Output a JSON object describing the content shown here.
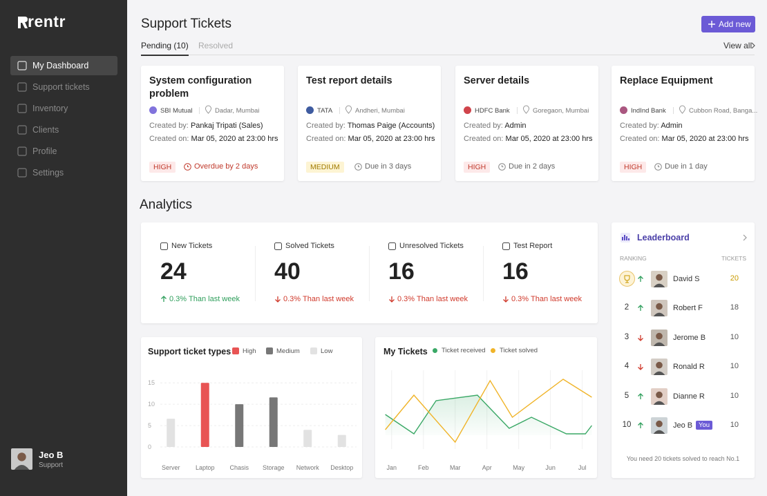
{
  "sidebar": {
    "logo": "rentr",
    "nav": [
      "My Dashboard",
      "Support tickets",
      "Inventory",
      "Clients",
      "Profile",
      "Settings"
    ],
    "active": 0,
    "user": {
      "name": "Jeo B",
      "role": "Support"
    }
  },
  "header": {
    "title": "Support Tickets",
    "button": "Add new",
    "tabs": [
      "Pending (10)",
      "Resolved"
    ],
    "active_tab": 0,
    "view_all": "View all"
  },
  "tickets": [
    {
      "title": "System configuration problem",
      "company": "SBI Mutual",
      "logo_color": "#6b5ad6",
      "location": "Dadar, Mumbai",
      "created_by_label": "Created by:",
      "created_by": "Pankaj Tripati (Sales)",
      "created_on_label": "Created on:",
      "created_on": "Mar 05, 2020 at 23:00 hrs",
      "priority": "HIGH",
      "due": "Overdue by 2 days",
      "overdue": true
    },
    {
      "title": "Test report details",
      "company": "TATA",
      "logo_color": "#1d3f8f",
      "location": "Andheri, Mumbai",
      "created_by_label": "Created by:",
      "created_by": "Thomas Paige (Accounts)",
      "created_on_label": "Created on:",
      "created_on": "Mar 05, 2020 at 23:00 hrs",
      "priority": "MEDIUM",
      "due": "Due in 3 days",
      "overdue": false
    },
    {
      "title": "Server details",
      "company": "HDFC Bank",
      "logo_color": "#c8232c",
      "location": "Goregaon, Mumbai",
      "created_by_label": "Created by:",
      "created_by": "Admin",
      "created_on_label": "Created on:",
      "created_on": "Mar 05, 2020 at 23:00 hrs",
      "priority": "HIGH",
      "due": "Due in 2 days",
      "overdue": false
    },
    {
      "title": "Replace Equipment",
      "company": "IndInd Bank",
      "logo_color": "#9b3a6a",
      "location": "Cubbon Road, Banga...",
      "created_by_label": "Created by:",
      "created_by": "Admin",
      "created_on_label": "Created on:",
      "created_on": "Mar 05, 2020 at 23:00 hrs",
      "priority": "HIGH",
      "due": "Due in 1 day",
      "overdue": false
    }
  ],
  "analytics": {
    "title": "Analytics",
    "stats": [
      {
        "label": "New Tickets",
        "value": 24,
        "change": "0.3%",
        "note": "Than last week",
        "trend": "up"
      },
      {
        "label": "Solved Tickets",
        "value": 40,
        "change": "0.3%",
        "note": "Than last week",
        "trend": "down"
      },
      {
        "label": "Unresolved Tickets",
        "value": 16,
        "change": "0.3%",
        "note": "Than last week",
        "trend": "down"
      },
      {
        "label": "Test Report",
        "value": 16,
        "change": "0.3%",
        "note": "Than last week",
        "trend": "down"
      }
    ],
    "bar_chart": {
      "type": "bar",
      "title": "Support ticket types",
      "categories": [
        "Server",
        "Laptop",
        "Chasis",
        "Storage",
        "Network",
        "Desktop"
      ],
      "series": [
        {
          "name": "High",
          "color": "#e85454",
          "values": [
            null,
            15,
            null,
            null,
            null,
            null
          ]
        },
        {
          "name": "Medium",
          "color": "#777777",
          "values": [
            null,
            null,
            10,
            11.6,
            null,
            null
          ]
        },
        {
          "name": "Low",
          "color": "#e2e2e2",
          "values": [
            6.6,
            null,
            null,
            null,
            4,
            2.8
          ]
        }
      ],
      "ylim": [
        0,
        16
      ],
      "yticks": [
        0,
        5,
        10,
        15
      ],
      "grid": true
    },
    "line_chart": {
      "type": "line",
      "title": "My Tickets",
      "xlim": [
        -0.3,
        6.4
      ],
      "xticks": [
        {
          "value": 0,
          "label": "Jan"
        },
        {
          "value": 1,
          "label": "Feb"
        },
        {
          "value": 2,
          "label": "Mar"
        },
        {
          "value": 3,
          "label": "Apr"
        },
        {
          "value": 4,
          "label": "May"
        },
        {
          "value": 5,
          "label": "Jun"
        },
        {
          "value": 6,
          "label": "Jul"
        }
      ],
      "ylim": [
        0,
        11
      ],
      "series": [
        {
          "name": "Ticket received",
          "color": "#3aa866",
          "x": [
            -0.2,
            0.7,
            1.4,
            2.7,
            3.7,
            4.4,
            5.5,
            6.1,
            6.3
          ],
          "values": [
            5,
            2.2,
            7,
            7.8,
            3,
            4.6,
            2.2,
            2.2,
            3.4
          ]
        },
        {
          "name": "Ticket solved",
          "color": "#f0b429",
          "x": [
            -0.2,
            0.7,
            2,
            3.1,
            3.8,
            5.4,
            6.3
          ],
          "values": [
            2.8,
            7.8,
            1,
            9.9,
            4.6,
            10.1,
            7.5
          ]
        }
      ]
    }
  },
  "leaderboard": {
    "title": "Leaderboard",
    "columns": [
      "RANKING",
      "TICKETS"
    ],
    "rows": [
      {
        "name": "David S",
        "tickets": 20,
        "trend": "up"
      },
      {
        "rank": 2,
        "name": "Robert F",
        "tickets": 18,
        "trend": "up"
      },
      {
        "rank": 3,
        "name": "Jerome B",
        "tickets": 10,
        "trend": "down"
      },
      {
        "rank": 4,
        "name": "Ronald R",
        "tickets": 10,
        "trend": "down"
      },
      {
        "rank": 5,
        "name": "Dianne R",
        "tickets": 10,
        "trend": "up"
      },
      {
        "rank": 10,
        "name": "Jeo B",
        "tickets": 10,
        "trend": "up",
        "badge": "You"
      }
    ],
    "footer": "You need 20 tickets solved to reach No.1"
  }
}
